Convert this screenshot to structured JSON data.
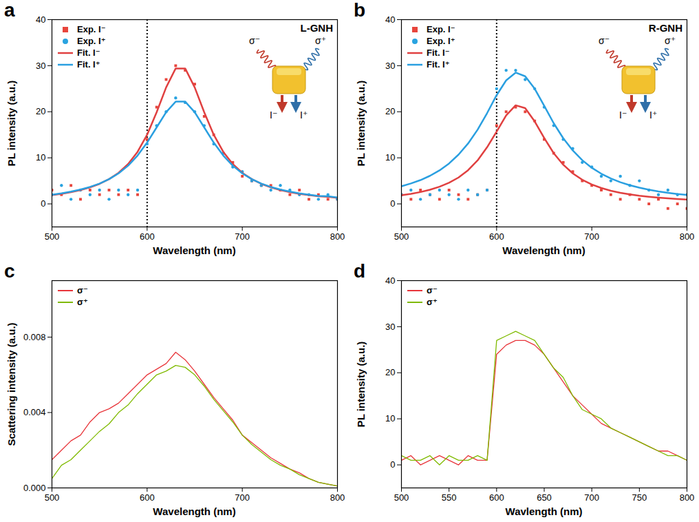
{
  "chart_data": [
    {
      "type": "line",
      "panel": "a",
      "x": [
        500,
        510,
        520,
        530,
        540,
        550,
        560,
        570,
        580,
        590,
        600,
        610,
        620,
        630,
        640,
        650,
        660,
        670,
        680,
        690,
        700,
        710,
        720,
        730,
        740,
        750,
        760,
        770,
        780,
        790,
        800
      ],
      "series": [
        {
          "name": "Exp. I⁻",
          "type": "scatter",
          "marker": "square",
          "color": "#e8453c",
          "values": [
            3,
            2,
            4,
            1,
            3,
            2,
            3,
            2,
            3,
            2,
            14,
            21,
            27,
            30,
            29,
            26,
            19,
            15,
            11,
            9,
            6,
            5,
            4,
            4,
            3,
            2,
            3,
            1,
            2,
            1,
            1
          ]
        },
        {
          "name": "Exp. I⁺",
          "type": "scatter",
          "marker": "circle",
          "color": "#29a3e0",
          "values": [
            2,
            4,
            1,
            3,
            2,
            3,
            1,
            3,
            2,
            3,
            13,
            17,
            20,
            23,
            22,
            20,
            17,
            13,
            11,
            8,
            7,
            5,
            4,
            3,
            4,
            3,
            2,
            2,
            1,
            2,
            1
          ]
        },
        {
          "name": "Fit. I⁻",
          "type": "line",
          "color": "#e04040",
          "values": [
            1.9,
            2.18,
            2.54,
            3.0,
            3.58,
            4.35,
            5.37,
            6.74,
            8.65,
            11.3,
            15,
            19.9,
            25.3,
            29.4,
            29.4,
            25.3,
            19.9,
            15,
            11.3,
            8.65,
            6.74,
            5.37,
            4.35,
            3.58,
            3.0,
            2.54,
            2.18,
            1.9,
            1.65,
            1.55,
            1.29
          ]
        },
        {
          "name": "Fit. I⁺",
          "type": "line",
          "color": "#2a9fe0",
          "values": [
            1.99,
            2.28,
            2.65,
            3.1,
            3.68,
            4.41,
            5.37,
            6.62,
            8.29,
            10.5,
            13.3,
            16.6,
            19.9,
            22.2,
            22.2,
            19.9,
            16.6,
            13.3,
            10.5,
            8.29,
            6.62,
            5.37,
            4.41,
            3.68,
            3.1,
            2.65,
            2.28,
            1.99,
            1.74,
            1.64,
            1.37
          ]
        }
      ],
      "xlim": [
        500,
        800
      ],
      "ylim": [
        -5,
        40
      ],
      "xticks": [
        500,
        600,
        700,
        800
      ],
      "yticks": [
        0,
        10,
        20,
        30,
        40
      ],
      "x_label": "Wavelength (nm)",
      "y_label": "PL intensity (a.u.)",
      "legend": "top-left",
      "reference_line": 600,
      "inset_title": "L-GNH",
      "inset_labels": {
        "left_wave": "σ⁻",
        "right_wave": "σ⁺",
        "left_beam": "I⁻",
        "right_beam": "I⁺"
      }
    },
    {
      "type": "line",
      "panel": "b",
      "x": [
        500,
        510,
        520,
        530,
        540,
        550,
        560,
        570,
        580,
        590,
        600,
        610,
        620,
        630,
        640,
        650,
        660,
        670,
        680,
        690,
        700,
        710,
        720,
        730,
        740,
        750,
        760,
        770,
        780,
        790,
        800
      ],
      "series": [
        {
          "name": "Exp. I⁻",
          "type": "scatter",
          "marker": "square",
          "color": "#e8453c",
          "values": [
            2,
            1,
            3,
            2,
            1,
            3,
            2,
            1,
            2,
            3,
            17,
            20,
            21,
            20,
            18,
            14,
            11,
            9,
            7,
            5,
            4,
            3,
            2,
            1,
            2,
            1,
            0,
            1,
            -1,
            0,
            -1
          ]
        },
        {
          "name": "Exp. I⁺",
          "type": "scatter",
          "marker": "circle",
          "color": "#29a3e0",
          "values": [
            2,
            3,
            1,
            2,
            3,
            2,
            1,
            3,
            2,
            3,
            25,
            29,
            29,
            27,
            25,
            21,
            17,
            14,
            12,
            9,
            8,
            6,
            5,
            6,
            4,
            5,
            3,
            2,
            3,
            2,
            2
          ]
        },
        {
          "name": "Fit. I⁻",
          "type": "line",
          "color": "#e04040",
          "values": [
            1.87,
            2.18,
            2.57,
            3.08,
            3.73,
            4.58,
            5.73,
            7.3,
            9.43,
            12.3,
            15.7,
            19.2,
            21.4,
            20.8,
            17.9,
            14.3,
            11,
            8.5,
            6.62,
            5.23,
            4.21,
            3.45,
            2.86,
            2.41,
            2.05,
            1.77,
            1.54,
            1.35,
            1.19,
            1.06,
            0.95
          ]
        },
        {
          "name": "Fit. I⁺",
          "type": "line",
          "color": "#2a9fe0",
          "values": [
            3.82,
            4.43,
            5.16,
            6.1,
            7.27,
            8.77,
            10.7,
            13.1,
            16.1,
            19.7,
            23.6,
            26.8,
            28.5,
            27.7,
            25,
            21.3,
            17.5,
            14.25,
            11.6,
            9.48,
            7.83,
            6.54,
            5.51,
            4.7,
            4.05,
            3.51,
            3.07,
            2.71,
            2.41,
            2.15,
            1.93
          ]
        }
      ],
      "xlim": [
        500,
        800
      ],
      "ylim": [
        -5,
        40
      ],
      "xticks": [
        500,
        600,
        700,
        800
      ],
      "yticks": [
        0,
        10,
        20,
        30,
        40
      ],
      "x_label": "Wavelength (nm)",
      "y_label": "PL intensity (a.u.)",
      "legend": "top-left",
      "reference_line": 600,
      "inset_title": "R-GNH",
      "inset_labels": {
        "left_wave": "σ⁻",
        "right_wave": "σ⁺",
        "left_beam": "I⁻",
        "right_beam": "I⁺"
      }
    },
    {
      "type": "line",
      "panel": "c",
      "x": [
        500,
        510,
        520,
        530,
        540,
        550,
        560,
        570,
        580,
        590,
        600,
        610,
        620,
        630,
        640,
        650,
        660,
        670,
        680,
        690,
        700,
        710,
        720,
        730,
        740,
        750,
        760,
        770,
        780,
        790,
        800
      ],
      "series": [
        {
          "name": "σ⁻",
          "type": "line",
          "color": "#e8353a",
          "values": [
            0.0015,
            0.002,
            0.0025,
            0.0028,
            0.0035,
            0.004,
            0.0042,
            0.0045,
            0.005,
            0.0055,
            0.006,
            0.0063,
            0.0066,
            0.0072,
            0.0068,
            0.0062,
            0.0055,
            0.0048,
            0.0042,
            0.0036,
            0.0028,
            0.0024,
            0.002,
            0.0016,
            0.0013,
            0.001,
            0.0008,
            0.0005,
            0.0003,
            0.0002,
            0.0001
          ]
        },
        {
          "name": "σ⁺",
          "type": "line",
          "color": "#7fba00",
          "values": [
            0.0005,
            0.0012,
            0.0015,
            0.002,
            0.0025,
            0.003,
            0.0034,
            0.004,
            0.0044,
            0.005,
            0.0055,
            0.006,
            0.0062,
            0.0065,
            0.0064,
            0.006,
            0.0054,
            0.0047,
            0.0041,
            0.0035,
            0.0028,
            0.0023,
            0.0019,
            0.0015,
            0.0012,
            0.001,
            0.0007,
            0.0005,
            0.0003,
            0.0002,
            0.0001
          ]
        }
      ],
      "xlim": [
        500,
        800
      ],
      "ylim": [
        0,
        0.011
      ],
      "xticks": [
        500,
        600,
        700,
        800
      ],
      "yticks": [
        {
          "value": 0,
          "label": "0.000"
        },
        {
          "value": 0.004,
          "label": "0.004"
        },
        {
          "value": 0.008,
          "label": "0.008"
        }
      ],
      "x_label": "Wavelength (nm)",
      "y_label": "Scattering intensity (a.u.)",
      "legend": "top-left"
    },
    {
      "type": "line",
      "panel": "d",
      "x": [
        500,
        510,
        520,
        530,
        540,
        550,
        560,
        570,
        580,
        590,
        600,
        610,
        620,
        630,
        640,
        650,
        660,
        670,
        680,
        690,
        700,
        710,
        720,
        730,
        740,
        750,
        760,
        770,
        780,
        790,
        800
      ],
      "series": [
        {
          "name": "σ⁻",
          "type": "line",
          "color": "#e8353a",
          "values": [
            1,
            2,
            0,
            1,
            2,
            1,
            0,
            2,
            1,
            1,
            24,
            26,
            27,
            27,
            26,
            24,
            21,
            18,
            15,
            13,
            11,
            9,
            8,
            7,
            6,
            5,
            4,
            3,
            3,
            2,
            1
          ]
        },
        {
          "name": "σ⁺",
          "type": "line",
          "color": "#7fba00",
          "values": [
            2,
            1,
            1,
            2,
            0,
            2,
            1,
            1,
            2,
            1,
            27,
            28,
            29,
            28,
            27,
            24,
            21,
            19,
            15,
            12,
            11,
            10,
            8,
            7,
            6,
            5,
            4,
            3,
            2,
            2,
            1
          ]
        }
      ],
      "xlim": [
        500,
        800
      ],
      "ylim": [
        -5,
        40
      ],
      "xticks": [
        500,
        550,
        600,
        650,
        700,
        750,
        800
      ],
      "yticks": [
        0,
        10,
        20,
        30,
        40
      ],
      "x_label": "Wavlength (nm)",
      "y_label": "PL intensity (a.u.)",
      "legend": "top-left"
    }
  ]
}
